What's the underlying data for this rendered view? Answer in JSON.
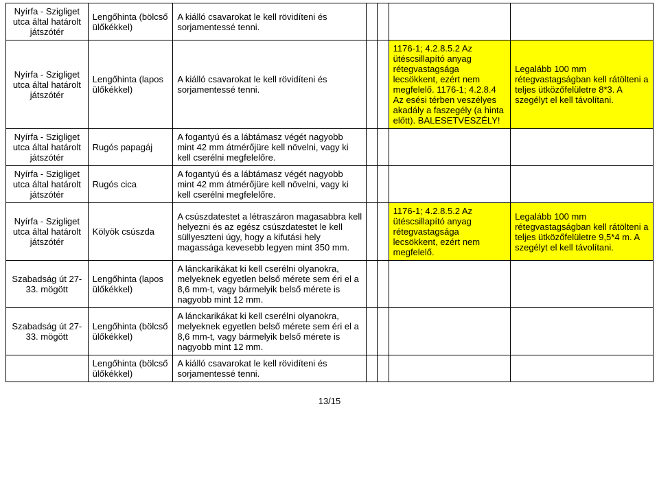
{
  "colors": {
    "highlight": "#ffff00",
    "border": "#000000",
    "background": "#ffffff",
    "text": "#000000"
  },
  "rows": [
    {
      "c0": "Nyírfa - Szigliget utca által határolt játszótér",
      "c1": "Lengőhinta (bölcső ülőkékkel)",
      "c2": "A kiálló csavarokat le kell rövidíteni és sorjamentessé tenni.",
      "c3": "",
      "c4": "",
      "c5": "",
      "c6": ""
    },
    {
      "c0": "Nyírfa - Szigliget utca által határolt játszótér",
      "c1": "Lengőhinta (lapos ülőkékkel)",
      "c2": "A kiálló csavarokat le kell rövidíteni és sorjamentessé tenni.",
      "c3": "",
      "c4": "",
      "c5": "1176-1; 4.2.8.5.2 Az ütéscsillapító anyag rétegvastagsága lecsökkent, ezért nem megfelelő. 1176-1; 4.2.8.4 Az esési térben veszélyes akadály a faszegély (a hinta előtt). BALESETVESZÉLY!",
      "c6": "Legalább 100 mm rétegvastagságban kell rátölteni a teljes ütközőfelületre 8*3. A szegélyt el kell távolítani.",
      "c5hl": true,
      "c6hl": true
    },
    {
      "c0": "Nyírfa - Szigliget utca által határolt játszótér",
      "c1": "Rugós papagáj",
      "c2": "A fogantyú és a lábtámasz végét nagyobb mint 42 mm átmérőjüre kell növelni, vagy ki kell cserélni megfelelőre.",
      "c3": "",
      "c4": "",
      "c5": "",
      "c6": ""
    },
    {
      "c0": "Nyírfa - Szigliget utca által határolt játszótér",
      "c1": "Rugós cica",
      "c2": "A fogantyú és a lábtámasz végét nagyobb mint 42 mm átmérőjüre kell növelni, vagy ki kell cserélni megfelelőre.",
      "c3": "",
      "c4": "",
      "c5": "",
      "c6": ""
    },
    {
      "c0": "Nyírfa - Szigliget utca által határolt játszótér",
      "c1": "Kölyök csúszda",
      "c2": "A csúszdatestet a létraszáron magasabbra kell helyezni és az egész csúszdatestet le kell süllyeszteni úgy, hogy a kifutási hely magassága kevesebb legyen mint 350 mm.",
      "c3": "",
      "c4": "",
      "c5": "1176-1; 4.2.8.5.2 Az ütéscsillapító anyag rétegvastagsága lecsökkent, ezért nem megfelelő.",
      "c6": "Legalább 100 mm rétegvastagságban kell rátölteni a teljes ütközőfelületre 9,5*4 m. A szegélyt el kell távolítani.",
      "c5hl": true,
      "c6hl": true
    },
    {
      "c0": "Szabadság út 27-33. mögött",
      "c1": "Lengőhinta (lapos ülőkékkel)",
      "c2": "A lánckarikákat ki kell cserélni olyanokra, melyeknek egyetlen belső mérete sem éri el a 8,6 mm-t, vagy bármelyik belső mérete is nagyobb mint 12 mm.",
      "c3": "",
      "c4": "",
      "c5": "",
      "c6": ""
    },
    {
      "c0": "Szabadság út 27-33. mögött",
      "c1": "Lengőhinta (bölcső ülőkékkel)",
      "c2": "A lánckarikákat ki kell cserélni olyanokra, melyeknek egyetlen belső mérete sem éri el a 8,6 mm-t, vagy bármelyik belső mérete is nagyobb mint 12 mm.",
      "c3": "",
      "c4": "",
      "c5": "",
      "c6": ""
    },
    {
      "c0": "",
      "c1": "Lengőhinta (bölcső ülőkékkel)",
      "c2": "A kiálló csavarokat le kell rövidíteni és sorjamentessé tenni.",
      "c3": "",
      "c4": "",
      "c5": "",
      "c6": ""
    }
  ],
  "footer": "13/15"
}
